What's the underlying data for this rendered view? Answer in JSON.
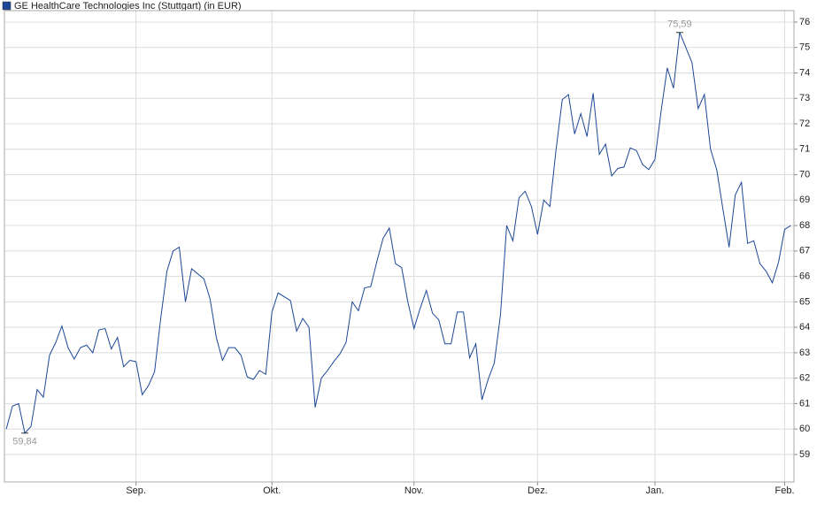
{
  "chart_data": {
    "type": "line",
    "title": "GE HealthCare Technologies Inc (Stuttgart) (in EUR)",
    "color": "#1c4796",
    "values": [
      60.0,
      60.9,
      61.0,
      59.84,
      60.1,
      61.55,
      61.25,
      62.9,
      63.4,
      64.05,
      63.2,
      62.75,
      63.2,
      63.3,
      63.0,
      63.9,
      63.95,
      63.15,
      63.6,
      62.45,
      62.7,
      62.65,
      61.35,
      61.7,
      62.25,
      64.35,
      66.2,
      67.0,
      67.15,
      65.0,
      66.3,
      66.1,
      65.9,
      65.1,
      63.6,
      62.7,
      63.2,
      63.2,
      62.9,
      62.05,
      61.95,
      62.3,
      62.15,
      64.6,
      65.35,
      65.2,
      65.05,
      63.85,
      64.35,
      64.0,
      60.85,
      62.0,
      62.3,
      62.65,
      62.95,
      63.4,
      65.0,
      64.65,
      65.55,
      65.6,
      66.6,
      67.5,
      67.9,
      66.5,
      66.35,
      65.0,
      63.95,
      64.75,
      65.45,
      64.55,
      64.3,
      63.35,
      63.35,
      64.6,
      64.6,
      62.8,
      63.35,
      61.15,
      61.95,
      62.6,
      64.5,
      68.0,
      67.4,
      69.1,
      69.35,
      68.75,
      67.65,
      69.0,
      68.75,
      71.0,
      72.95,
      73.15,
      71.6,
      72.4,
      71.5,
      73.2,
      70.8,
      71.2,
      69.95,
      70.25,
      70.3,
      71.05,
      70.95,
      70.4,
      70.2,
      70.6,
      72.5,
      74.2,
      73.4,
      75.59,
      75.0,
      74.4,
      72.6,
      73.15,
      71.0,
      70.2,
      68.65,
      67.15,
      69.2,
      69.7,
      67.3,
      67.4,
      66.5,
      66.2,
      65.75,
      66.55,
      67.85,
      68.0
    ],
    "value_labels": [
      null,
      null,
      null,
      "59,84",
      null,
      null,
      null,
      null,
      null,
      null,
      null,
      null,
      null,
      null,
      null,
      null,
      null,
      null,
      null,
      null,
      null,
      null,
      null,
      null,
      null,
      null,
      null,
      null,
      null,
      null,
      null,
      null,
      null,
      null,
      null,
      null,
      null,
      null,
      null,
      null,
      null,
      null,
      null,
      null,
      null,
      null,
      null,
      null,
      null,
      null,
      null,
      null,
      null,
      null,
      null,
      null,
      null,
      null,
      null,
      null,
      null,
      null,
      null,
      null,
      null,
      null,
      null,
      null,
      null,
      null,
      null,
      null,
      null,
      null,
      null,
      null,
      null,
      null,
      null,
      null,
      null,
      null,
      null,
      null,
      null,
      null,
      null,
      null,
      null,
      null,
      null,
      null,
      null,
      null,
      null,
      null,
      null,
      null,
      null,
      null,
      null,
      null,
      null,
      null,
      null,
      null,
      null,
      null,
      null,
      "75,59",
      null,
      null,
      null,
      null,
      null,
      null,
      null,
      null,
      null,
      null,
      null,
      null,
      null,
      null,
      null,
      null,
      null,
      null
    ],
    "xlim": [
      -0.3,
      127.5
    ],
    "xticks": [
      {
        "value": 21,
        "label": "Sep."
      },
      {
        "value": 43,
        "label": "Okt."
      },
      {
        "value": 66,
        "label": "Nov."
      },
      {
        "value": 86,
        "label": "Dez."
      },
      {
        "value": 105,
        "label": "Jan."
      },
      {
        "value": 126,
        "label": "Feb."
      }
    ],
    "ylim": [
      57.92,
      76.45
    ],
    "yticks": [
      59,
      60,
      61,
      62,
      63,
      64,
      65,
      66,
      67,
      68,
      69,
      70,
      71,
      72,
      73,
      74,
      75,
      76
    ],
    "grid": true
  }
}
